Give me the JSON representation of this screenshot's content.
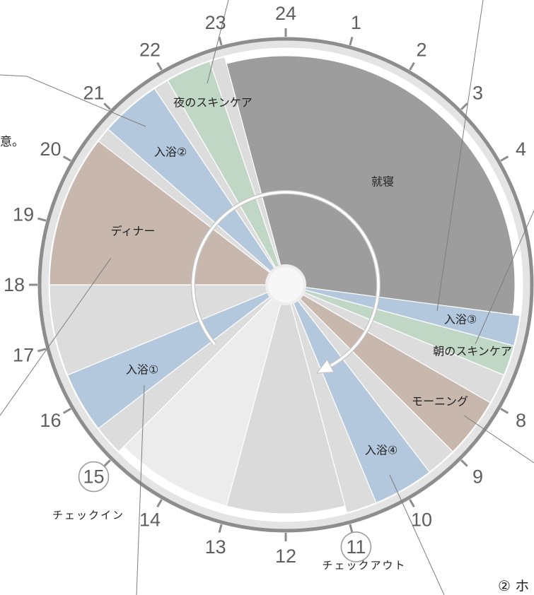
{
  "chart_data": {
    "type": "pie",
    "hour_labels": [
      "24",
      "1",
      "2",
      "3",
      "4",
      "8",
      "9",
      "10",
      "11",
      "12",
      "13",
      "14",
      "15",
      "16",
      "17",
      "18",
      "19",
      "20",
      "21",
      "22",
      "23"
    ],
    "segments": [
      {
        "label": "就寝",
        "start": 23,
        "end": 6.5,
        "color": "#9d9d9d"
      },
      {
        "label": "入浴③",
        "start": 6.5,
        "end": 7,
        "color": "#b4c8dd"
      },
      {
        "label": "朝のスキンケア",
        "start": 7,
        "end": 7.5,
        "color": "#c1d7c5"
      },
      {
        "label": "",
        "start": 7.5,
        "end": 8,
        "color": "#dcdcdc"
      },
      {
        "label": "モーニング",
        "start": 8,
        "end": 9,
        "color": "#c7b7ad"
      },
      {
        "label": "",
        "start": 9,
        "end": 9.5,
        "color": "#dcdcdc"
      },
      {
        "label": "入浴④",
        "start": 9.5,
        "end": 10.5,
        "color": "#b4c8dd"
      },
      {
        "label": "",
        "start": 10.5,
        "end": 11,
        "color": "#dcdcdc"
      },
      {
        "label": "",
        "start": 11,
        "end": 13,
        "color": "#dadada"
      },
      {
        "label": "",
        "start": 13,
        "end": 15,
        "color": "#ececec"
      },
      {
        "label": "",
        "start": 15,
        "end": 15.5,
        "color": "#dcdcdc"
      },
      {
        "label": "入浴①",
        "start": 15.5,
        "end": 16.5,
        "color": "#b4c8dd"
      },
      {
        "label": "",
        "start": 16.5,
        "end": 18,
        "color": "#dcdcdc"
      },
      {
        "label": "ディナー",
        "start": 18,
        "end": 20.5,
        "color": "#c7b7ad"
      },
      {
        "label": "",
        "start": 20.5,
        "end": 20.75,
        "color": "#dcdcdc"
      },
      {
        "label": "入浴②",
        "start": 20.75,
        "end": 21.75,
        "color": "#b4c8dd"
      },
      {
        "label": "",
        "start": 21.75,
        "end": 22,
        "color": "#dcdcdc"
      },
      {
        "label": "夜のスキンケア",
        "start": 22,
        "end": 22.75,
        "color": "#c1d7c5"
      },
      {
        "label": "",
        "start": 22.75,
        "end": 23,
        "color": "#dcdcdc"
      }
    ],
    "checkin": {
      "hour": 15,
      "label": "チェックイン"
    },
    "checkout": {
      "hour": 11,
      "label": "チェックアウト"
    }
  },
  "annotations": {
    "left_fragment": "意。",
    "bottom_right_fragment": "② ホ"
  },
  "colors": {
    "ring": "#8d8d8d",
    "ring_band": "#e4e4e4",
    "tick": "#8d8d8d",
    "hour_label": "#5e5e5e",
    "hour_marker_circle": "#9c9c9c",
    "leader_line": "#7d7d7d",
    "hub": "#eeeeee",
    "arrow": "#ffffff",
    "arrow_edge": "#c4c4c4"
  }
}
